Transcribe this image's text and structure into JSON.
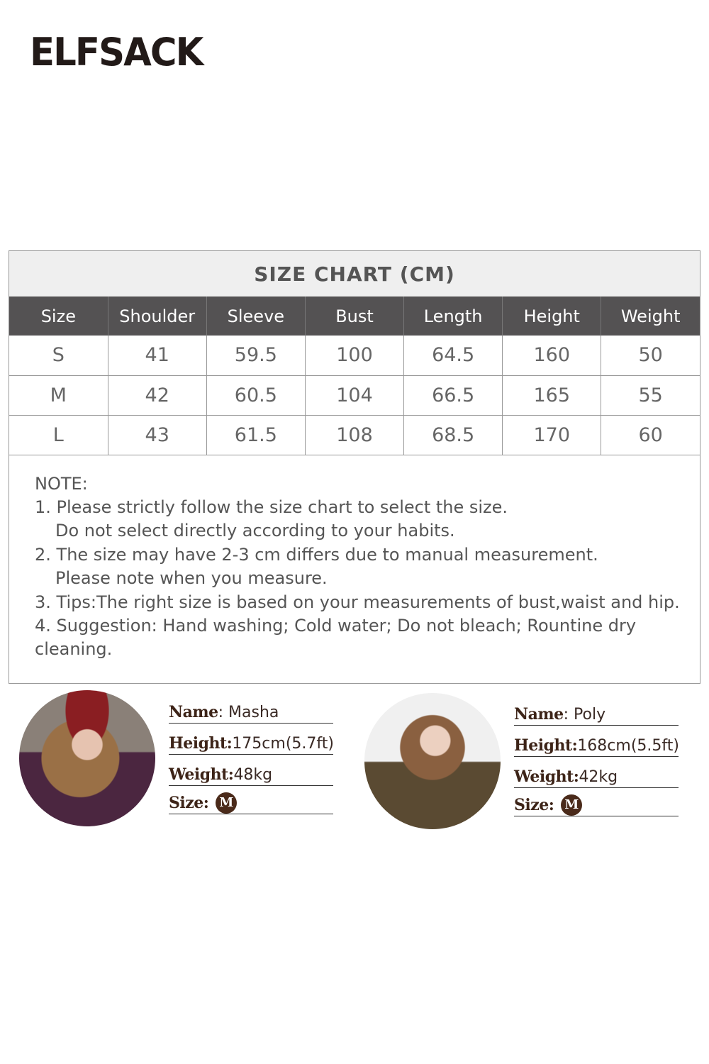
{
  "brand": {
    "logo_text": "ELFSACK"
  },
  "size_chart": {
    "title": "SIZE CHART (CM)",
    "headers": [
      "Size",
      "Shoulder",
      "Sleeve",
      "Bust",
      "Length",
      "Height",
      "Weight"
    ],
    "rows": [
      [
        "S",
        "41",
        "59.5",
        "100",
        "64.5",
        "160",
        "50"
      ],
      [
        "M",
        "42",
        "60.5",
        "104",
        "66.5",
        "165",
        "55"
      ],
      [
        "L",
        "43",
        "61.5",
        "108",
        "68.5",
        "170",
        "60"
      ]
    ],
    "colors": {
      "header_bg": "#545253",
      "title_bg": "#efefef"
    }
  },
  "note": {
    "title": "NOTE:",
    "lines": [
      "1. Please strictly follow the size chart to select the size.",
      "Do not select directly according to your habits.",
      "2. The size may have 2-3 cm differs due to manual measurement.",
      "Please note when you measure.",
      "3. Tips:The right size is based on your measurements of bust,waist and hip.",
      "4. Suggestion: Hand washing; Cold water; Do not bleach; Rountine dry cleaning."
    ]
  },
  "models": [
    {
      "name_label": "Name",
      "name": ": Masha",
      "height_label": "Height:",
      "height": " 175cm(5.7ft)",
      "weight_label": "Weight:",
      "weight": " 48kg",
      "size_label": "Size:",
      "size": "M"
    },
    {
      "name_label": "Name",
      "name": ": Poly",
      "height_label": "Height:",
      "height": " 168cm(5.5ft)",
      "weight_label": "Weight:",
      "weight": " 42kg",
      "size_label": "Size:",
      "size": "M"
    }
  ]
}
